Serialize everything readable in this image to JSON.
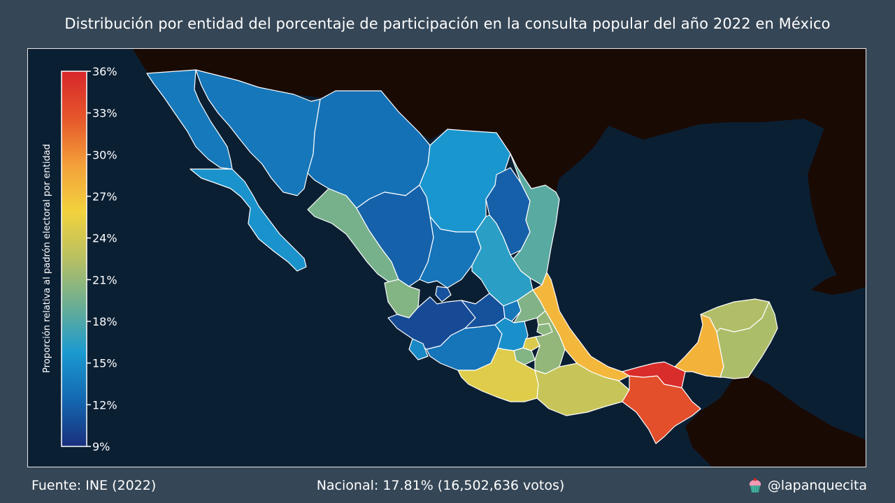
{
  "title": "Distribución por entidad del porcentaje de participación en la consulta popular del año 2022 en México",
  "footer": {
    "source": "Fuente: INE (2022)",
    "national": "Nacional: 17.81% (16,502,636 votos)",
    "credit": "@lapanquecita"
  },
  "colorbar": {
    "label": "Proporción relativa al padrón electoral por entidad",
    "min": 9,
    "max": 36,
    "ticks": [
      "36%",
      "33%",
      "30%",
      "27%",
      "24%",
      "21%",
      "18%",
      "15%",
      "12%",
      "9%"
    ],
    "stops": [
      "#1a2f7d",
      "#1468b0",
      "#1b9ad0",
      "#6aae94",
      "#b8c063",
      "#f2d23d",
      "#f3a03a",
      "#e6562b",
      "#d7262b"
    ]
  },
  "colors": {
    "ocean": "#0b1f33",
    "land_other": "#1a0a04",
    "state_border": "#ffffff",
    "background": "#354656"
  },
  "states": [
    {
      "name": "Baja California",
      "value": 13.5
    },
    {
      "name": "Baja California Sur",
      "value": 15.3
    },
    {
      "name": "Sonora",
      "value": 13.4
    },
    {
      "name": "Chihuahua",
      "value": 13.0
    },
    {
      "name": "Coahuila",
      "value": 15.5
    },
    {
      "name": "Nuevo León",
      "value": 11.9
    },
    {
      "name": "Tamaulipas",
      "value": 18.4
    },
    {
      "name": "Sinaloa",
      "value": 19.7
    },
    {
      "name": "Durango",
      "value": 12.0
    },
    {
      "name": "Zacatecas",
      "value": 13.2
    },
    {
      "name": "San Luis Potosí",
      "value": 16.4
    },
    {
      "name": "Nayarit",
      "value": 20.2
    },
    {
      "name": "Aguascalientes",
      "value": 11.1
    },
    {
      "name": "Jalisco",
      "value": 10.6
    },
    {
      "name": "Guanajuato",
      "value": 11.0
    },
    {
      "name": "Querétaro",
      "value": 13.4
    },
    {
      "name": "Hidalgo",
      "value": 20.1
    },
    {
      "name": "Colima",
      "value": 14.6
    },
    {
      "name": "Michoacán",
      "value": 13.2
    },
    {
      "name": "Estado de México",
      "value": 15.1
    },
    {
      "name": "Ciudad de México",
      "value": 24.5
    },
    {
      "name": "Morelos",
      "value": 20.2
    },
    {
      "name": "Tlaxcala",
      "value": 20.6
    },
    {
      "name": "Puebla",
      "value": 20.9
    },
    {
      "name": "Veracruz",
      "value": 27.7
    },
    {
      "name": "Guerrero",
      "value": 24.7
    },
    {
      "name": "Oaxaca",
      "value": 23.4
    },
    {
      "name": "Chiapas",
      "value": 33.2
    },
    {
      "name": "Tabasco",
      "value": 35.5
    },
    {
      "name": "Campeche",
      "value": 28.0
    },
    {
      "name": "Yucatán",
      "value": 22.2
    },
    {
      "name": "Quintana Roo",
      "value": 22.0
    }
  ]
}
